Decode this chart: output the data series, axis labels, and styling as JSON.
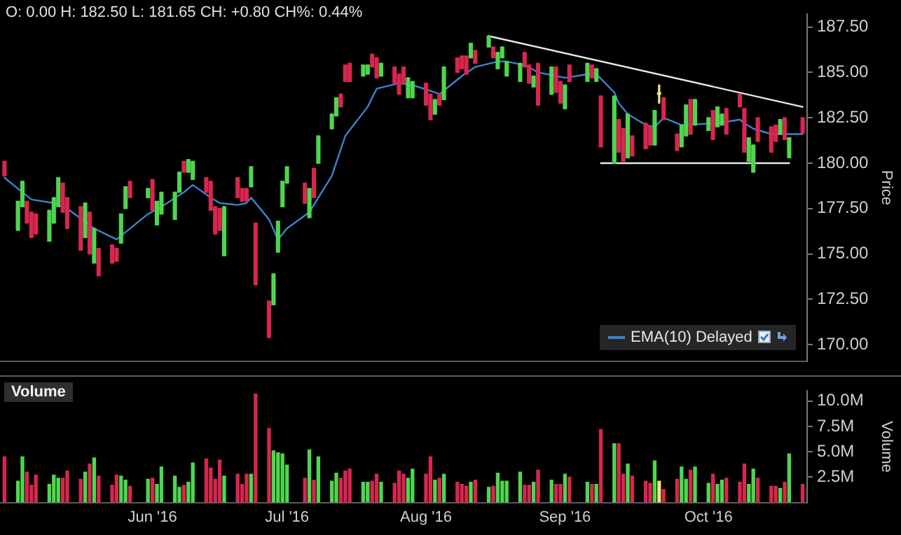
{
  "chart_data": [
    {
      "type": "candlestick",
      "annotations": [
        "O: 0.00 H: 182.50 L: 181.65 CH: +0.80 CH%: 0.44%"
      ],
      "ylabel": "Price",
      "legend": "bottom right",
      "tick_labels": "y",
      "xlim": [
        "2016-04-28",
        "2016-10-25"
      ],
      "ylim": [
        169.1,
        188.2
      ],
      "yticks": [
        {
          "value": 170,
          "label": "170.00"
        },
        {
          "value": 172.5,
          "label": "172.50"
        },
        {
          "value": 175,
          "label": "175.00"
        },
        {
          "value": 177.5,
          "label": "177.50"
        },
        {
          "value": 180,
          "label": "180.00"
        },
        {
          "value": 182.5,
          "label": "182.50"
        },
        {
          "value": 185,
          "label": "185.00"
        },
        {
          "value": 187.5,
          "label": "187.50"
        }
      ],
      "x": [
        "2016-04-29",
        "2016-05-02",
        "2016-05-03",
        "2016-05-04",
        "2016-05-05",
        "2016-05-06",
        "2016-05-09",
        "2016-05-10",
        "2016-05-11",
        "2016-05-12",
        "2016-05-13",
        "2016-05-16",
        "2016-05-17",
        "2016-05-18",
        "2016-05-19",
        "2016-05-20",
        "2016-05-23",
        "2016-05-24",
        "2016-05-25",
        "2016-05-26",
        "2016-05-27",
        "2016-05-31",
        "2016-06-01",
        "2016-06-02",
        "2016-06-03",
        "2016-06-06",
        "2016-06-07",
        "2016-06-08",
        "2016-06-09",
        "2016-06-10",
        "2016-06-13",
        "2016-06-14",
        "2016-06-15",
        "2016-06-16",
        "2016-06-17",
        "2016-06-20",
        "2016-06-21",
        "2016-06-22",
        "2016-06-23",
        "2016-06-24",
        "2016-06-27",
        "2016-06-28",
        "2016-06-29",
        "2016-06-30",
        "2016-07-01",
        "2016-07-05",
        "2016-07-06",
        "2016-07-07",
        "2016-07-08",
        "2016-07-11",
        "2016-07-12",
        "2016-07-13",
        "2016-07-14",
        "2016-07-15",
        "2016-07-18",
        "2016-07-19",
        "2016-07-20",
        "2016-07-21",
        "2016-07-22",
        "2016-07-25",
        "2016-07-26",
        "2016-07-27",
        "2016-07-28",
        "2016-07-29",
        "2016-08-01",
        "2016-08-02",
        "2016-08-03",
        "2016-08-04",
        "2016-08-05",
        "2016-08-08",
        "2016-08-09",
        "2016-08-10",
        "2016-08-11",
        "2016-08-12",
        "2016-08-15",
        "2016-08-16",
        "2016-08-17",
        "2016-08-18",
        "2016-08-19",
        "2016-08-22",
        "2016-08-23",
        "2016-08-24",
        "2016-08-25",
        "2016-08-26",
        "2016-08-29",
        "2016-08-30",
        "2016-08-31",
        "2016-09-01",
        "2016-09-02",
        "2016-09-06",
        "2016-09-07",
        "2016-09-08",
        "2016-09-09",
        "2016-09-12",
        "2016-09-13",
        "2016-09-14",
        "2016-09-15",
        "2016-09-16",
        "2016-09-19",
        "2016-09-20",
        "2016-09-21",
        "2016-09-22",
        "2016-09-23",
        "2016-09-26",
        "2016-09-27",
        "2016-09-28",
        "2016-09-29",
        "2016-09-30",
        "2016-10-03",
        "2016-10-04",
        "2016-10-05",
        "2016-10-06",
        "2016-10-07",
        "2016-10-10",
        "2016-10-11",
        "2016-10-12",
        "2016-10-13",
        "2016-10-14",
        "2016-10-17",
        "2016-10-18",
        "2016-10-19",
        "2016-10-20",
        "2016-10-21",
        "2016-10-24"
      ],
      "ohlc": [
        [
          180.1,
          180.1,
          179.3,
          179.3
        ],
        [
          176.3,
          177.9,
          176.3,
          177.9
        ],
        [
          177.6,
          179.0,
          177.6,
          179.0
        ],
        [
          177.9,
          177.9,
          176.7,
          176.7
        ],
        [
          177.3,
          177.3,
          175.9,
          175.9
        ],
        [
          177.2,
          177.2,
          176.1,
          176.1
        ],
        [
          175.7,
          177.4,
          175.7,
          177.4
        ],
        [
          176.7,
          178.1,
          176.7,
          178.1
        ],
        [
          177.6,
          179.2,
          177.6,
          179.2
        ],
        [
          178.9,
          178.9,
          177.3,
          177.3
        ],
        [
          178.1,
          178.1,
          176.4,
          176.4
        ],
        [
          177.6,
          177.6,
          175.2,
          175.2
        ],
        [
          175.9,
          177.8,
          175.9,
          177.8
        ],
        [
          177.3,
          177.3,
          175.0,
          175.0
        ],
        [
          174.5,
          176.4,
          174.5,
          176.4
        ],
        [
          175.3,
          175.3,
          173.8,
          173.8
        ],
        [
          175.5,
          175.5,
          174.5,
          174.5
        ],
        [
          175.3,
          175.3,
          174.6,
          174.6
        ],
        [
          175.6,
          177.2,
          175.6,
          177.2
        ],
        [
          177.5,
          178.7,
          177.5,
          178.7
        ],
        [
          179.0,
          179.0,
          178.1,
          178.1
        ],
        [
          178.1,
          178.6,
          178.1,
          178.6
        ],
        [
          179.1,
          179.1,
          177.4,
          177.4
        ],
        [
          176.6,
          177.9,
          176.6,
          177.9
        ],
        [
          177.2,
          178.4,
          177.2,
          178.4
        ],
        [
          176.9,
          178.4,
          176.9,
          178.4
        ],
        [
          178.4,
          179.5,
          178.4,
          179.5
        ],
        [
          180.1,
          180.1,
          179.5,
          179.5
        ],
        [
          179.5,
          180.2,
          179.5,
          180.2
        ],
        [
          179.1,
          180.1,
          179.1,
          180.1
        ],
        [
          179.2,
          179.2,
          178.4,
          178.4
        ],
        [
          179.0,
          179.0,
          177.4,
          177.4
        ],
        [
          177.6,
          177.6,
          176.1,
          176.1
        ],
        [
          177.5,
          177.5,
          176.3,
          176.3
        ],
        [
          174.9,
          177.6,
          174.9,
          177.6
        ],
        [
          179.2,
          179.2,
          178.1,
          178.1
        ],
        [
          178.6,
          178.6,
          177.9,
          177.9
        ],
        [
          178.6,
          178.6,
          177.9,
          177.9
        ],
        [
          178.7,
          179.8,
          178.7,
          179.8
        ],
        [
          176.7,
          176.7,
          173.3,
          173.3
        ],
        [
          172.4,
          172.4,
          170.4,
          170.4
        ],
        [
          172.2,
          173.9,
          172.2,
          173.9
        ],
        [
          175.1,
          176.8,
          175.1,
          176.8
        ],
        [
          177.6,
          179.0,
          177.6,
          179.0
        ],
        [
          178.9,
          179.8,
          178.9,
          179.8
        ],
        [
          178.9,
          178.9,
          177.8,
          177.8
        ],
        [
          177.0,
          178.6,
          177.0,
          178.6
        ],
        [
          179.7,
          179.7,
          178.1,
          178.1
        ],
        [
          180.0,
          181.5,
          180.0,
          181.5
        ],
        [
          181.9,
          182.7,
          181.9,
          182.7
        ],
        [
          182.6,
          183.6,
          182.6,
          183.6
        ],
        [
          183.8,
          183.8,
          183.1,
          183.1
        ],
        [
          185.4,
          185.4,
          184.5,
          184.5
        ],
        [
          185.5,
          185.5,
          184.5,
          184.5
        ],
        [
          184.8,
          185.4,
          184.8,
          185.4
        ],
        [
          184.9,
          185.4,
          184.9,
          185.4
        ],
        [
          186.0,
          186.0,
          185.3,
          185.3
        ],
        [
          185.8,
          185.8,
          184.7,
          184.7
        ],
        [
          184.8,
          185.5,
          184.8,
          185.5
        ],
        [
          185.3,
          185.3,
          184.4,
          184.4
        ],
        [
          184.9,
          184.9,
          183.8,
          183.8
        ],
        [
          185.3,
          185.3,
          184.4,
          184.4
        ],
        [
          183.6,
          184.7,
          183.6,
          184.7
        ],
        [
          183.6,
          184.5,
          183.6,
          184.5
        ],
        [
          184.4,
          184.4,
          183.2,
          183.2
        ],
        [
          183.8,
          183.8,
          182.4,
          182.4
        ],
        [
          182.7,
          183.5,
          182.7,
          183.5
        ],
        [
          183.8,
          183.8,
          183.2,
          183.2
        ],
        [
          183.5,
          185.3,
          183.5,
          185.3
        ],
        [
          185.8,
          185.8,
          185.0,
          185.0
        ],
        [
          185.9,
          185.9,
          185.2,
          185.2
        ],
        [
          185.9,
          185.9,
          184.9,
          184.9
        ],
        [
          185.8,
          186.6,
          185.8,
          186.6
        ],
        [
          186.2,
          186.2,
          185.5,
          185.5
        ],
        [
          186.4,
          187.0,
          186.4,
          187.0
        ],
        [
          186.4,
          186.4,
          185.8,
          185.8
        ],
        [
          185.2,
          186.1,
          185.2,
          186.1
        ],
        [
          185.8,
          186.4,
          185.8,
          186.4
        ],
        [
          184.8,
          185.6,
          184.8,
          185.6
        ],
        [
          184.5,
          185.5,
          184.5,
          185.5
        ],
        [
          186.1,
          186.1,
          185.3,
          185.3
        ],
        [
          185.4,
          185.4,
          184.4,
          184.4
        ],
        [
          184.2,
          184.8,
          184.2,
          184.8
        ],
        [
          185.5,
          185.5,
          183.2,
          183.2
        ],
        [
          183.8,
          185.3,
          183.8,
          185.3
        ],
        [
          185.3,
          185.3,
          183.9,
          183.9
        ],
        [
          184.5,
          184.5,
          183.3,
          183.3
        ],
        [
          183.0,
          184.3,
          183.0,
          184.3
        ],
        [
          185.4,
          185.4,
          184.5,
          184.5
        ],
        [
          184.5,
          185.5,
          184.5,
          185.5
        ],
        [
          185.4,
          185.4,
          184.7,
          184.7
        ],
        [
          184.5,
          185.2,
          184.5,
          185.2
        ],
        [
          183.7,
          183.7,
          180.9,
          180.9
        ],
        [
          180.0,
          183.7,
          180.0,
          183.7
        ],
        [
          182.4,
          182.4,
          180.6,
          180.6
        ],
        [
          181.9,
          181.9,
          180.1,
          180.1
        ],
        [
          180.3,
          182.7,
          180.3,
          182.7
        ],
        [
          181.5,
          181.5,
          180.4,
          180.4
        ],
        [
          182.2,
          182.2,
          180.8,
          180.8
        ],
        [
          182.0,
          182.0,
          181.0,
          181.0
        ],
        [
          181.0,
          182.9,
          181.0,
          182.9
        ],
        [
          183.8,
          184.3,
          183.3,
          183.8
        ],
        [
          183.6,
          183.6,
          182.4,
          182.4
        ],
        [
          181.6,
          181.6,
          180.7,
          180.7
        ],
        [
          180.9,
          182.1,
          180.9,
          182.1
        ],
        [
          181.5,
          183.2,
          181.5,
          183.2
        ],
        [
          183.5,
          183.5,
          181.6,
          181.6
        ],
        [
          182.1,
          183.5,
          182.1,
          183.5
        ],
        [
          181.8,
          182.5,
          181.8,
          182.5
        ],
        [
          182.9,
          182.9,
          181.3,
          181.3
        ],
        [
          182.0,
          183.1,
          182.0,
          183.1
        ],
        [
          182.1,
          182.7,
          182.1,
          182.7
        ],
        [
          183.0,
          183.0,
          181.6,
          181.6
        ],
        [
          183.8,
          183.8,
          183.1,
          183.1
        ],
        [
          183.0,
          183.0,
          180.6,
          180.6
        ],
        [
          180.1,
          181.4,
          180.1,
          181.4
        ],
        [
          179.5,
          181.0,
          179.5,
          181.0
        ],
        [
          182.5,
          182.5,
          181.2,
          181.2
        ],
        [
          182.0,
          182.0,
          180.6,
          180.6
        ],
        [
          182.1,
          182.1,
          181.2,
          181.2
        ],
        [
          181.6,
          182.4,
          181.6,
          182.4
        ],
        [
          182.5,
          182.5,
          181.3,
          181.3
        ],
        [
          180.3,
          181.4,
          180.3,
          181.4
        ],
        [
          182.5,
          182.5,
          181.65,
          181.65
        ]
      ],
      "colors": [
        "#d8264f",
        "#4fd64f",
        "#4fd64f",
        "#d8264f",
        "#d8264f",
        "#d8264f",
        "#4fd64f",
        "#4fd64f",
        "#4fd64f",
        "#d8264f",
        "#d8264f",
        "#d8264f",
        "#4fd64f",
        "#d8264f",
        "#4fd64f",
        "#d8264f",
        "#d8264f",
        "#d8264f",
        "#4fd64f",
        "#4fd64f",
        "#d8264f",
        "#4fd64f",
        "#d8264f",
        "#4fd64f",
        "#4fd64f",
        "#4fd64f",
        "#4fd64f",
        "#d8264f",
        "#4fd64f",
        "#4fd64f",
        "#d8264f",
        "#d8264f",
        "#d8264f",
        "#d8264f",
        "#4fd64f",
        "#d8264f",
        "#d8264f",
        "#d8264f",
        "#4fd64f",
        "#d8264f",
        "#d8264f",
        "#4fd64f",
        "#4fd64f",
        "#4fd64f",
        "#4fd64f",
        "#d8264f",
        "#4fd64f",
        "#d8264f",
        "#4fd64f",
        "#4fd64f",
        "#4fd64f",
        "#d8264f",
        "#d8264f",
        "#d8264f",
        "#4fd64f",
        "#4fd64f",
        "#d8264f",
        "#d8264f",
        "#4fd64f",
        "#d8264f",
        "#d8264f",
        "#d8264f",
        "#4fd64f",
        "#4fd64f",
        "#d8264f",
        "#d8264f",
        "#4fd64f",
        "#d8264f",
        "#4fd64f",
        "#d8264f",
        "#d8264f",
        "#d8264f",
        "#4fd64f",
        "#d8264f",
        "#4fd64f",
        "#d8264f",
        "#4fd64f",
        "#4fd64f",
        "#4fd64f",
        "#4fd64f",
        "#d8264f",
        "#d8264f",
        "#4fd64f",
        "#d8264f",
        "#4fd64f",
        "#d8264f",
        "#d8264f",
        "#4fd64f",
        "#d8264f",
        "#4fd64f",
        "#d8264f",
        "#4fd64f",
        "#d8264f",
        "#4fd64f",
        "#d8264f",
        "#d8264f",
        "#4fd64f",
        "#d8264f",
        "#d8264f",
        "#d8264f",
        "#4fd64f",
        "#ece27a",
        "#d8264f",
        "#d8264f",
        "#4fd64f",
        "#4fd64f",
        "#d8264f",
        "#4fd64f",
        "#4fd64f",
        "#d8264f",
        "#4fd64f",
        "#4fd64f",
        "#d8264f",
        "#d8264f",
        "#d8264f",
        "#4fd64f",
        "#4fd64f",
        "#d8264f",
        "#d8264f",
        "#d8264f",
        "#4fd64f",
        "#d8264f",
        "#4fd64f",
        "#d8264f"
      ],
      "series": [
        {
          "type": "line",
          "name": "EMA(10) Delayed",
          "color": "#3d82cc",
          "x": [
            "2016-04-29",
            "2016-05-05",
            "2016-05-10",
            "2016-05-13",
            "2016-05-19",
            "2016-05-24",
            "2016-05-31",
            "2016-06-03",
            "2016-06-08",
            "2016-06-10",
            "2016-06-14",
            "2016-06-16",
            "2016-06-20",
            "2016-06-22",
            "2016-06-23",
            "2016-06-27",
            "2016-06-29",
            "2016-07-01",
            "2016-07-06",
            "2016-07-11",
            "2016-07-14",
            "2016-07-19",
            "2016-07-21",
            "2016-07-26",
            "2016-07-29",
            "2016-08-03",
            "2016-08-04",
            "2016-08-09",
            "2016-08-12",
            "2016-08-17",
            "2016-08-19",
            "2016-08-23",
            "2016-08-26",
            "2016-08-30",
            "2016-09-01",
            "2016-09-06",
            "2016-09-08",
            "2016-09-12",
            "2016-09-13",
            "2016-09-15",
            "2016-09-19",
            "2016-09-21",
            "2016-09-23",
            "2016-09-27",
            "2016-10-05",
            "2016-10-10",
            "2016-10-11",
            "2016-10-13",
            "2016-10-17",
            "2016-10-20",
            "2016-10-24"
          ],
          "values": [
            179.2,
            178.0,
            177.8,
            177.5,
            176.4,
            175.8,
            177.2,
            177.6,
            178.4,
            178.8,
            178.1,
            177.8,
            177.7,
            177.8,
            178.1,
            176.9,
            175.8,
            176.4,
            177.3,
            179.3,
            181.5,
            183.1,
            184.1,
            184.4,
            184.3,
            183.9,
            183.8,
            184.8,
            185.3,
            185.6,
            185.6,
            185.4,
            185.0,
            184.8,
            184.7,
            184.9,
            184.9,
            183.9,
            183.3,
            182.7,
            182.1,
            182.0,
            182.5,
            182.1,
            182.2,
            182.4,
            182.2,
            181.9,
            181.6,
            181.6,
            181.6
          ]
        },
        {
          "type": "line",
          "color": "#e8e8e8",
          "x": [
            "2016-08-15",
            "2016-10-24"
          ],
          "values": [
            187.0,
            183.1
          ]
        },
        {
          "type": "line",
          "color": "#e8e8e8",
          "x": [
            "2016-09-09",
            "2016-10-21"
          ],
          "values": [
            180.0,
            180.0
          ]
        }
      ]
    },
    {
      "type": "bar",
      "title": "Volume",
      "ylabel": "Volume",
      "xlim": [
        "2016-04-28",
        "2016-10-25"
      ],
      "ylim": [
        0,
        11
      ],
      "xticks": [
        {
          "value": "2016-06-01",
          "label": "Jun '16"
        },
        {
          "value": "2016-07-01",
          "label": "Jul '16"
        },
        {
          "value": "2016-08-01",
          "label": "Aug '16"
        },
        {
          "value": "2016-09-01",
          "label": "Sep '16"
        },
        {
          "value": "2016-10-03",
          "label": "Oct '16"
        }
      ],
      "yticks": [
        {
          "value": 2.5,
          "label": "2.5M"
        },
        {
          "value": 5,
          "label": "5.0M"
        },
        {
          "value": 7.5,
          "label": "7.5M"
        },
        {
          "value": 10,
          "label": "10.0M"
        }
      ],
      "x": [
        "2016-04-29",
        "2016-05-02",
        "2016-05-03",
        "2016-05-04",
        "2016-05-05",
        "2016-05-06",
        "2016-05-09",
        "2016-05-10",
        "2016-05-11",
        "2016-05-12",
        "2016-05-13",
        "2016-05-16",
        "2016-05-17",
        "2016-05-18",
        "2016-05-19",
        "2016-05-20",
        "2016-05-23",
        "2016-05-24",
        "2016-05-25",
        "2016-05-26",
        "2016-05-27",
        "2016-05-31",
        "2016-06-01",
        "2016-06-02",
        "2016-06-03",
        "2016-06-06",
        "2016-06-07",
        "2016-06-08",
        "2016-06-09",
        "2016-06-10",
        "2016-06-13",
        "2016-06-14",
        "2016-06-15",
        "2016-06-16",
        "2016-06-17",
        "2016-06-20",
        "2016-06-21",
        "2016-06-22",
        "2016-06-23",
        "2016-06-24",
        "2016-06-27",
        "2016-06-28",
        "2016-06-29",
        "2016-06-30",
        "2016-07-01",
        "2016-07-05",
        "2016-07-06",
        "2016-07-07",
        "2016-07-08",
        "2016-07-11",
        "2016-07-12",
        "2016-07-13",
        "2016-07-14",
        "2016-07-15",
        "2016-07-18",
        "2016-07-19",
        "2016-07-20",
        "2016-07-21",
        "2016-07-22",
        "2016-07-25",
        "2016-07-26",
        "2016-07-27",
        "2016-07-28",
        "2016-07-29",
        "2016-08-01",
        "2016-08-02",
        "2016-08-03",
        "2016-08-04",
        "2016-08-05",
        "2016-08-08",
        "2016-08-09",
        "2016-08-10",
        "2016-08-11",
        "2016-08-12",
        "2016-08-15",
        "2016-08-16",
        "2016-08-17",
        "2016-08-18",
        "2016-08-19",
        "2016-08-22",
        "2016-08-23",
        "2016-08-24",
        "2016-08-25",
        "2016-08-26",
        "2016-08-29",
        "2016-08-30",
        "2016-08-31",
        "2016-09-01",
        "2016-09-02",
        "2016-09-06",
        "2016-09-07",
        "2016-09-08",
        "2016-09-09",
        "2016-09-12",
        "2016-09-13",
        "2016-09-14",
        "2016-09-15",
        "2016-09-16",
        "2016-09-19",
        "2016-09-20",
        "2016-09-21",
        "2016-09-22",
        "2016-09-23",
        "2016-09-26",
        "2016-09-27",
        "2016-09-28",
        "2016-09-29",
        "2016-09-30",
        "2016-10-03",
        "2016-10-04",
        "2016-10-05",
        "2016-10-06",
        "2016-10-07",
        "2016-10-10",
        "2016-10-11",
        "2016-10-12",
        "2016-10-13",
        "2016-10-14",
        "2016-10-17",
        "2016-10-18",
        "2016-10-19",
        "2016-10-20",
        "2016-10-21",
        "2016-10-24"
      ],
      "values": [
        4.5,
        2.1,
        4.5,
        3.0,
        1.7,
        2.7,
        1.8,
        2.7,
        2.4,
        2.4,
        3.1,
        2.3,
        3.0,
        3.8,
        4.4,
        2.6,
        1.7,
        2.7,
        2.6,
        2.2,
        1.6,
        2.3,
        2.4,
        1.8,
        3.5,
        2.6,
        1.5,
        1.7,
        2.0,
        3.9,
        4.3,
        3.4,
        2.3,
        4.2,
        2.6,
        2.8,
        1.8,
        2.8,
        2.8,
        10.7,
        7.3,
        5.1,
        4.9,
        4.8,
        3.7,
        2.4,
        5.2,
        2.2,
        4.5,
        2.1,
        2.9,
        2.4,
        3.1,
        3.3,
        2.0,
        2.0,
        2.1,
        2.8,
        2.0,
        1.9,
        3.1,
        2.8,
        2.4,
        3.3,
        2.8,
        4.5,
        2.2,
        2.4,
        2.8,
        2.0,
        1.8,
        1.6,
        2.0,
        2.2,
        1.5,
        1.6,
        2.9,
        2.1,
        2.1,
        3.0,
        1.7,
        1.7,
        2.0,
        3.2,
        2.2,
        1.8,
        1.8,
        2.8,
        2.5,
        2.0,
        1.8,
        1.8,
        7.2,
        5.8,
        5.8,
        2.8,
        3.8,
        2.6,
        2.1,
        1.9,
        4.1,
        2.1,
        1.3,
        2.3,
        3.5,
        2.3,
        3.2,
        3.5,
        1.9,
        2.8,
        1.8,
        2.2,
        2.4,
        2.0,
        3.8,
        1.8,
        3.3,
        2.4,
        1.6,
        1.6,
        1.4,
        2.0,
        4.8,
        1.8
      ],
      "colors": [
        "#d8264f",
        "#4fd64f",
        "#4fd64f",
        "#d8264f",
        "#d8264f",
        "#d8264f",
        "#4fd64f",
        "#4fd64f",
        "#4fd64f",
        "#d8264f",
        "#d8264f",
        "#d8264f",
        "#4fd64f",
        "#d8264f",
        "#4fd64f",
        "#d8264f",
        "#d8264f",
        "#d8264f",
        "#4fd64f",
        "#4fd64f",
        "#d8264f",
        "#4fd64f",
        "#d8264f",
        "#4fd64f",
        "#4fd64f",
        "#4fd64f",
        "#4fd64f",
        "#d8264f",
        "#4fd64f",
        "#4fd64f",
        "#d8264f",
        "#d8264f",
        "#d8264f",
        "#d8264f",
        "#4fd64f",
        "#d8264f",
        "#d8264f",
        "#d8264f",
        "#4fd64f",
        "#d8264f",
        "#d8264f",
        "#4fd64f",
        "#4fd64f",
        "#4fd64f",
        "#4fd64f",
        "#d8264f",
        "#4fd64f",
        "#d8264f",
        "#4fd64f",
        "#4fd64f",
        "#4fd64f",
        "#d8264f",
        "#d8264f",
        "#d8264f",
        "#4fd64f",
        "#4fd64f",
        "#d8264f",
        "#d8264f",
        "#4fd64f",
        "#d8264f",
        "#d8264f",
        "#d8264f",
        "#4fd64f",
        "#4fd64f",
        "#d8264f",
        "#d8264f",
        "#4fd64f",
        "#d8264f",
        "#4fd64f",
        "#d8264f",
        "#d8264f",
        "#d8264f",
        "#4fd64f",
        "#d8264f",
        "#4fd64f",
        "#d8264f",
        "#4fd64f",
        "#4fd64f",
        "#4fd64f",
        "#4fd64f",
        "#d8264f",
        "#d8264f",
        "#4fd64f",
        "#d8264f",
        "#4fd64f",
        "#d8264f",
        "#d8264f",
        "#4fd64f",
        "#d8264f",
        "#4fd64f",
        "#d8264f",
        "#4fd64f",
        "#d8264f",
        "#4fd64f",
        "#d8264f",
        "#d8264f",
        "#4fd64f",
        "#d8264f",
        "#d8264f",
        "#d8264f",
        "#4fd64f",
        "#ece27a",
        "#d8264f",
        "#d8264f",
        "#4fd64f",
        "#4fd64f",
        "#d8264f",
        "#4fd64f",
        "#4fd64f",
        "#d8264f",
        "#4fd64f",
        "#4fd64f",
        "#d8264f",
        "#d8264f",
        "#d8264f",
        "#4fd64f",
        "#4fd64f",
        "#d8264f",
        "#d8264f",
        "#d8264f",
        "#4fd64f",
        "#d8264f",
        "#4fd64f",
        "#d8264f"
      ]
    }
  ]
}
